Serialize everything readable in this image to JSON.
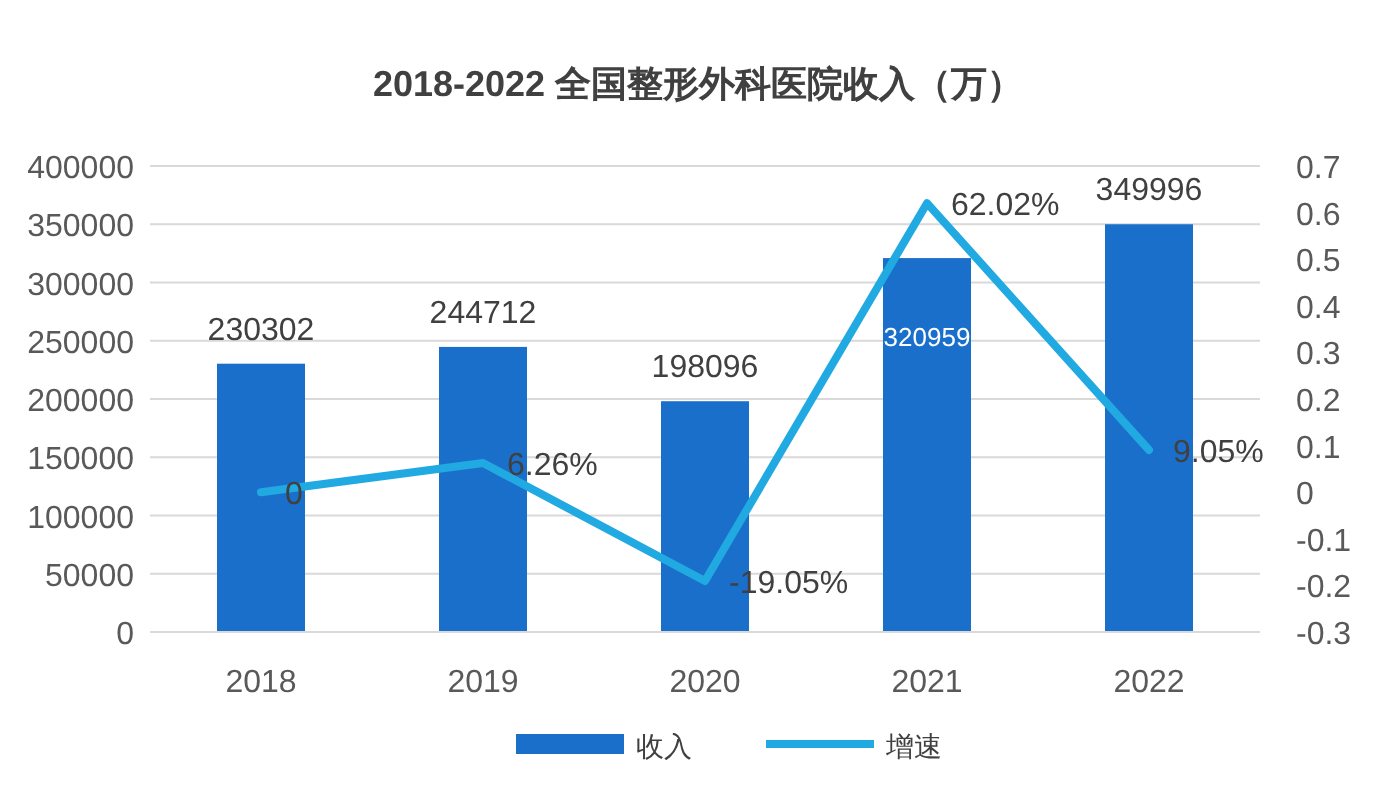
{
  "chart_data": {
    "type": "bar",
    "title": "2018-2022 全国整形外科医院收入（万）",
    "categories": [
      "2018",
      "2019",
      "2020",
      "2021",
      "2022"
    ],
    "series": [
      {
        "name": "收入",
        "color": "#1a6fcb",
        "values": [
          230302,
          244712,
          198096,
          320959,
          349996
        ],
        "value_labels": [
          "230302",
          "244712",
          "198096",
          "320959",
          "349996"
        ]
      },
      {
        "name": "增速",
        "type": "line",
        "axis": "y2",
        "color": "#21a9e1",
        "values": [
          0,
          0.0626,
          -0.1905,
          0.6202,
          0.0905
        ],
        "value_labels": [
          "0",
          "6.26%",
          "-19.05%",
          "62.02%",
          "9.05%"
        ]
      }
    ],
    "ylim": [
      0,
      400000
    ],
    "yticks": [
      0,
      50000,
      100000,
      150000,
      200000,
      250000,
      300000,
      350000,
      400000
    ],
    "y2lim": [
      -0.3,
      0.7
    ],
    "y2ticks": [
      -0.3,
      -0.2,
      -0.1,
      0,
      0.1,
      0.2,
      0.3,
      0.4,
      0.5,
      0.6,
      0.7
    ],
    "grid": "y",
    "legend": "bottom",
    "marker": "none"
  }
}
